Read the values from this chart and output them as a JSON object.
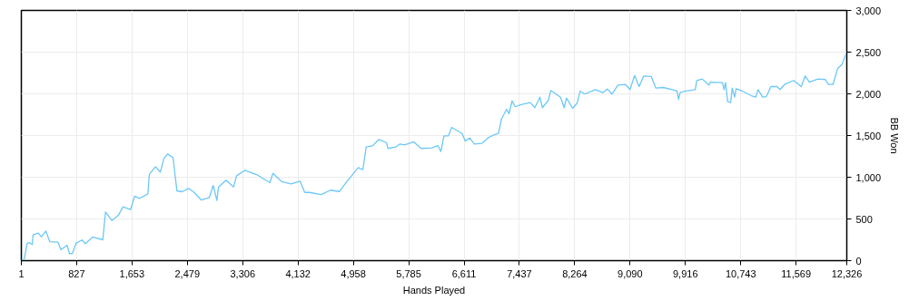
{
  "chart_data": {
    "type": "line",
    "xlabel": "Hands Played",
    "ylabel": "BB Won",
    "color": "#6cc8f5",
    "grid": true,
    "xlim": [
      1,
      12326
    ],
    "xticks": [
      1,
      827,
      {
        "value": 1653,
        "label": "1,653"
      },
      {
        "value": 2479,
        "label": "2,479"
      },
      {
        "value": 3306,
        "label": "3,306"
      },
      {
        "value": 4132,
        "label": "4,132"
      },
      {
        "value": 4958,
        "label": "4,958"
      },
      {
        "value": 5785,
        "label": "5,785"
      },
      {
        "value": 6611,
        "label": "6,611"
      },
      {
        "value": 7437,
        "label": "7,437"
      },
      {
        "value": 8264,
        "label": "8,264"
      },
      {
        "value": 9090,
        "label": "9,090"
      },
      {
        "value": 9916,
        "label": "9,916"
      },
      {
        "value": 10743,
        "label": "10,743"
      },
      {
        "value": 11569,
        "label": "11,569"
      },
      {
        "value": 12326,
        "label": "12,326"
      }
    ],
    "ylim": [
      0,
      3000
    ],
    "yticks": [
      0,
      500,
      {
        "value": 1000,
        "label": "1,000"
      },
      {
        "value": 1500,
        "label": "1,500"
      },
      {
        "value": 2000,
        "label": "2,000"
      },
      {
        "value": 2500,
        "label": "2,500"
      },
      {
        "value": 3000,
        "label": "3,000"
      }
    ],
    "x": [
      1,
      45,
      86,
      118,
      164,
      177,
      254,
      299,
      367,
      425,
      548,
      593,
      683,
      720,
      764,
      819,
      910,
      955,
      1068,
      1217,
      1258,
      1353,
      1452,
      1520,
      1632,
      1692,
      1768,
      1890,
      1913,
      2004,
      2076,
      2130,
      2184,
      2266,
      2324,
      2401,
      2500,
      2582,
      2686,
      2808,
      2866,
      2921,
      2944,
      3056,
      3170,
      3215,
      3341,
      3531,
      3713,
      3757,
      3893,
      4029,
      4164,
      4232,
      4300,
      4480,
      4616,
      4752,
      4865,
      4933,
      5032,
      5100,
      5150,
      5249,
      5340,
      5452,
      5475,
      5587,
      5655,
      5723,
      5859,
      5972,
      6130,
      6221,
      6266,
      6311,
      6379,
      6425,
      6582,
      6628,
      6696,
      6764,
      6876,
      6967,
      7057,
      7125,
      7170,
      7247,
      7283,
      7328,
      7374,
      7464,
      7600,
      7668,
      7745,
      7781,
      7871,
      7907,
      7984,
      8051,
      8106,
      8141,
      8232,
      8300,
      8345,
      8413,
      8571,
      8683,
      8751,
      8819,
      8909,
      9022,
      9090,
      9158,
      9226,
      9294,
      9407,
      9475,
      9588,
      9724,
      9791,
      9814,
      9837,
      9927,
      10063,
      10086,
      10167,
      10266,
      10289,
      10470,
      10493,
      10515,
      10548,
      10592,
      10615,
      10651,
      10674,
      10765,
      10900,
      10968,
      10999,
      11071,
      11125,
      11193,
      11284,
      11329,
      11397,
      11533,
      11646,
      11705,
      11768,
      11894,
      12007,
      12052,
      12120,
      12188,
      12256,
      12323
    ],
    "values": [
      0,
      20,
      203,
      218,
      192,
      312,
      330,
      286,
      355,
      228,
      221,
      130,
      185,
      84,
      87,
      210,
      247,
      203,
      283,
      250,
      584,
      482,
      547,
      645,
      612,
      772,
      747,
      801,
      1036,
      1127,
      1062,
      1225,
      1279,
      1236,
      837,
      826,
      866,
      818,
      728,
      758,
      902,
      721,
      880,
      964,
      884,
      1018,
      1084,
      1025,
      935,
      1047,
      946,
      921,
      953,
      818,
      818,
      793,
      845,
      829,
      953,
      1018,
      1116,
      1090,
      1362,
      1380,
      1453,
      1416,
      1345,
      1362,
      1399,
      1388,
      1424,
      1345,
      1351,
      1380,
      1308,
      1497,
      1497,
      1598,
      1525,
      1435,
      1471,
      1399,
      1406,
      1471,
      1508,
      1525,
      1699,
      1815,
      1761,
      1916,
      1845,
      1870,
      1895,
      1834,
      1960,
      1834,
      1924,
      2040,
      1997,
      1960,
      1834,
      1949,
      1826,
      1888,
      2033,
      1997,
      2051,
      2015,
      2058,
      1997,
      2105,
      2112,
      2051,
      2221,
      2087,
      2214,
      2207,
      2069,
      2076,
      2051,
      2033,
      1932,
      2015,
      2033,
      2051,
      2160,
      2178,
      2105,
      2141,
      2134,
      2051,
      2134,
      1906,
      1895,
      2069,
      1960,
      2062,
      2033,
      1978,
      1960,
      2051,
      1960,
      1967,
      2087,
      2087,
      2051,
      2112,
      2160,
      2087,
      2214,
      2141,
      2178,
      2171,
      2112,
      2112,
      2301,
      2356,
      2496
    ]
  }
}
